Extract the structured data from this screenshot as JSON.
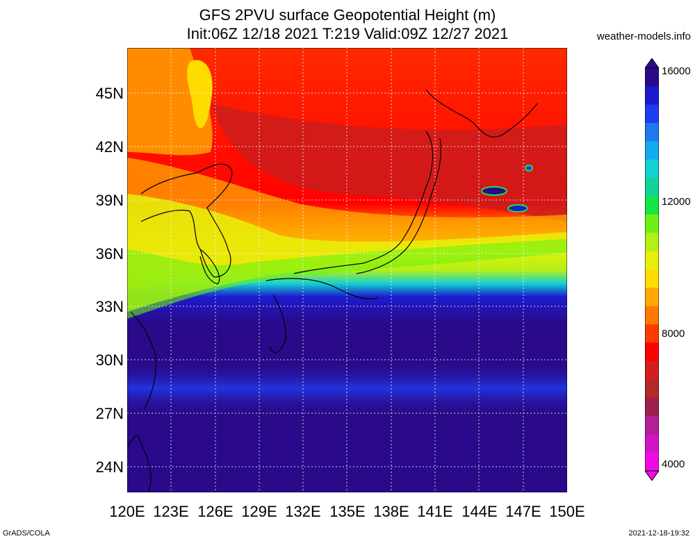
{
  "title_line1": "GFS 2PVU surface Geopotential Height (m)",
  "title_line2": "Init:06Z 12/18 2021 T:219 Valid:09Z 12/27 2021",
  "site": "weather-models.info",
  "lat_labels": [
    "45N",
    "42N",
    "39N",
    "36N",
    "33N",
    "30N",
    "27N",
    "24N"
  ],
  "lon_labels": [
    "120E",
    "123E",
    "126E",
    "129E",
    "132E",
    "135E",
    "138E",
    "141E",
    "144E",
    "147E",
    "150E"
  ],
  "colorbar": {
    "labels": [
      "16000",
      "12000",
      "8000",
      "4000"
    ],
    "colors": [
      "#2a0a8a",
      "#1c1ccd",
      "#1e3cf0",
      "#1e78f0",
      "#14aaf0",
      "#14d2d2",
      "#14d296",
      "#14e646",
      "#6ef014",
      "#b4f014",
      "#e6f00a",
      "#ffdc00",
      "#ffaa00",
      "#ff7800",
      "#ff3c00",
      "#ff0000",
      "#d21e1e",
      "#b42828",
      "#a01e50",
      "#b41e96",
      "#d214c8",
      "#f00ae6"
    ]
  },
  "footer_left": "GrADS/COLA",
  "footer_right": "2021-12-18-19:32"
}
